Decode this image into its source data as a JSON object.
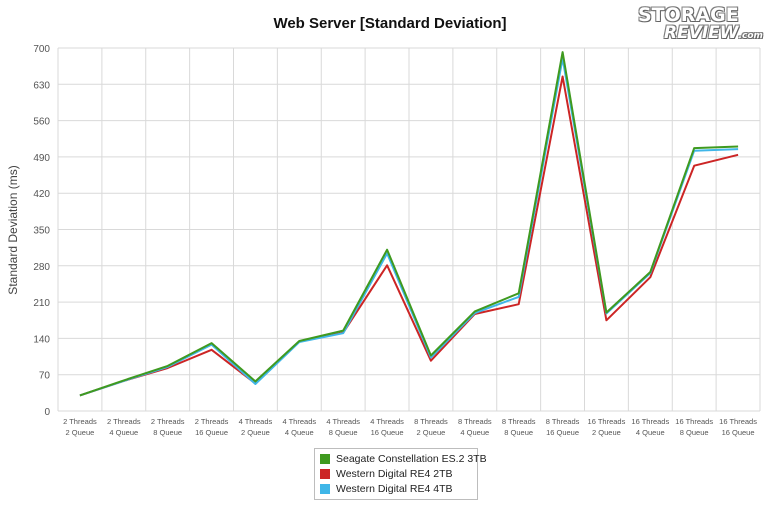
{
  "chart_data": {
    "type": "line",
    "title": "Web Server [Standard Deviation]",
    "ylabel": "Standard Deviation (ms)",
    "xlabel": "",
    "ylim": [
      0,
      700
    ],
    "yticks": [
      0,
      70,
      140,
      210,
      280,
      350,
      420,
      490,
      560,
      630,
      700
    ],
    "grid": true,
    "legend_position": "bottom",
    "categories": [
      [
        "2 Threads",
        "2 Queue"
      ],
      [
        "2 Threads",
        "4 Queue"
      ],
      [
        "2 Threads",
        "8 Queue"
      ],
      [
        "2 Threads",
        "16 Queue"
      ],
      [
        "4 Threads",
        "2 Queue"
      ],
      [
        "4 Threads",
        "4 Queue"
      ],
      [
        "4 Threads",
        "8 Queue"
      ],
      [
        "4 Threads",
        "16 Queue"
      ],
      [
        "8 Threads",
        "2 Queue"
      ],
      [
        "8 Threads",
        "4 Queue"
      ],
      [
        "8 Threads",
        "8 Queue"
      ],
      [
        "8 Threads",
        "16 Queue"
      ],
      [
        "16 Threads",
        "2 Queue"
      ],
      [
        "16 Threads",
        "4 Queue"
      ],
      [
        "16 Threads",
        "8 Queue"
      ],
      [
        "16 Threads",
        "16 Queue"
      ]
    ],
    "series": [
      {
        "name": "Seagate Constellation ES.2 3TB",
        "color": "#3f9a1f",
        "values": [
          30,
          59,
          87,
          131,
          57,
          135,
          155,
          311,
          107,
          192,
          227,
          692,
          190,
          268,
          507,
          510
        ]
      },
      {
        "name": "Western Digital RE4 2TB",
        "color": "#cc2525",
        "values": [
          30,
          58,
          83,
          118,
          53,
          134,
          151,
          281,
          97,
          187,
          206,
          645,
          175,
          258,
          473,
          494
        ]
      },
      {
        "name": "Western Digital RE4 4TB",
        "color": "#3fb6e8",
        "values": [
          30,
          58,
          85,
          128,
          52,
          133,
          150,
          304,
          103,
          189,
          220,
          680,
          188,
          266,
          502,
          505
        ]
      }
    ]
  },
  "logo": {
    "line1": "STORAGE",
    "line2": "REVIEW",
    "suffix": ".com"
  }
}
